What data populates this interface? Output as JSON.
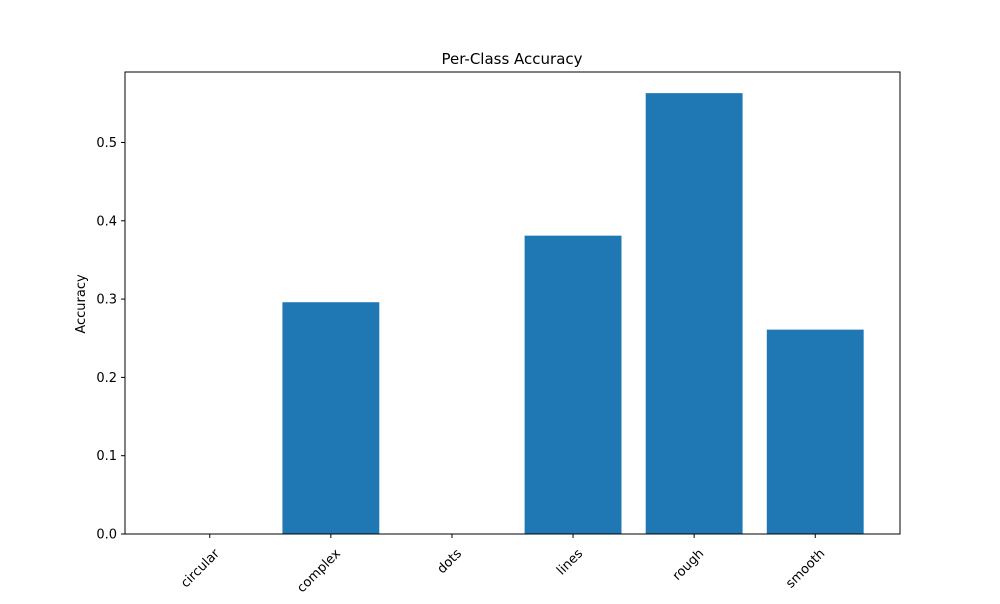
{
  "chart_data": {
    "type": "bar",
    "title": "Per-Class Accuracy",
    "xlabel": "",
    "ylabel": "Accuracy",
    "categories": [
      "circular",
      "complex",
      "dots",
      "lines",
      "rough",
      "smooth"
    ],
    "values": [
      0.0,
      0.296,
      0.0,
      0.381,
      0.563,
      0.261
    ],
    "ylim": [
      0,
      0.59
    ],
    "yticks": [
      "0.0",
      "0.1",
      "0.2",
      "0.3",
      "0.4",
      "0.5"
    ],
    "bar_color": "#1f77b4",
    "grid": false,
    "legend": "none"
  }
}
